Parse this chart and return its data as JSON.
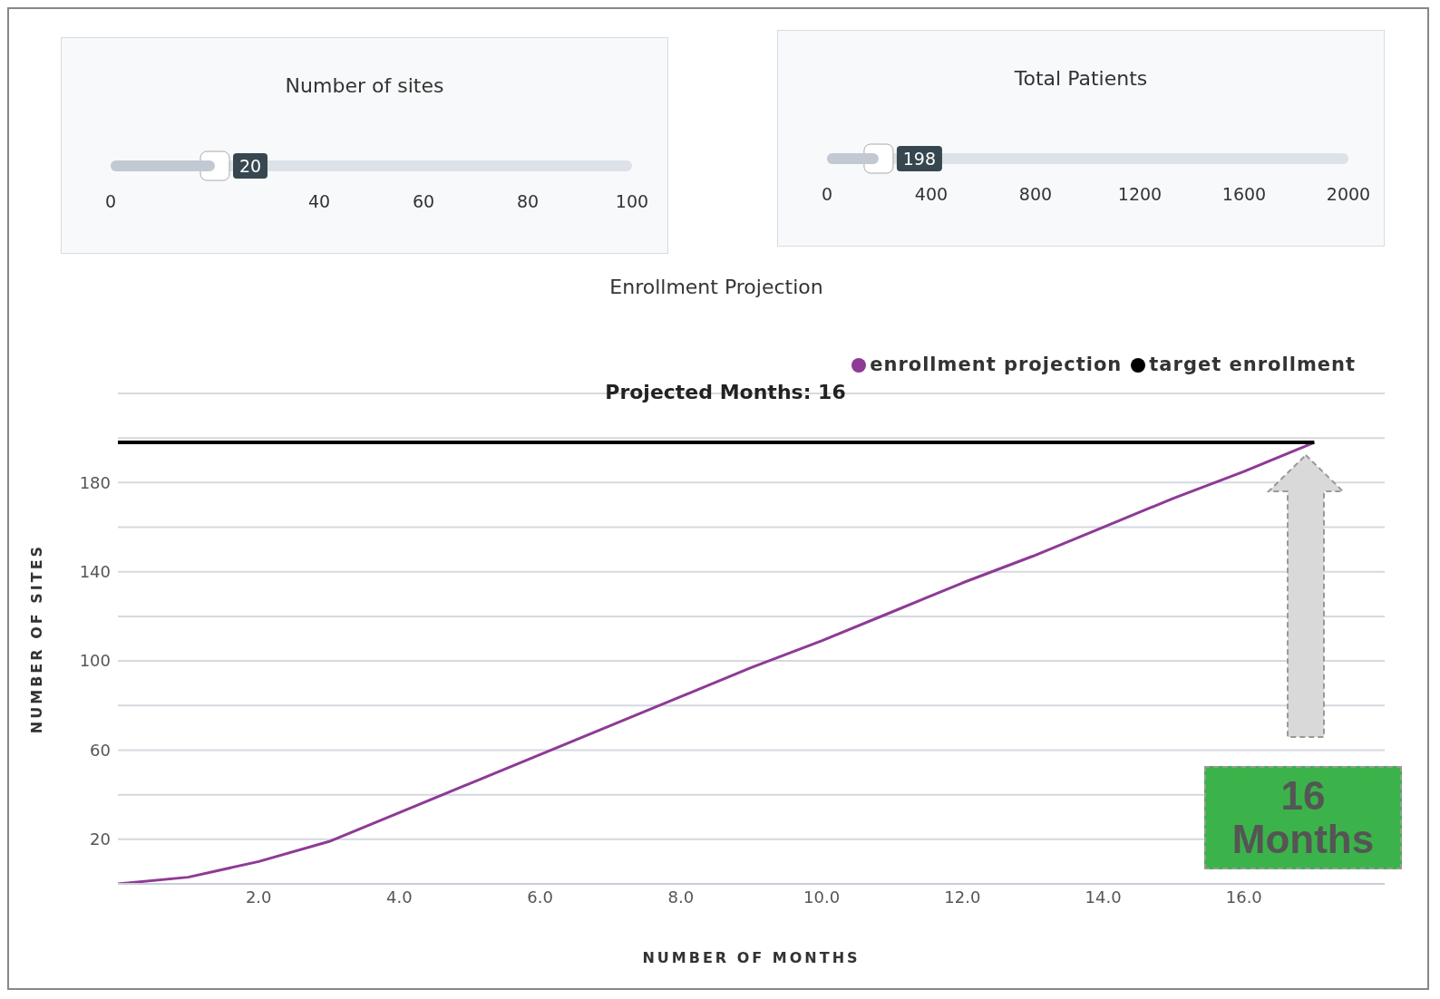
{
  "chart_data": [
    {
      "type": "bar",
      "orientation": "horizontal",
      "title": "Number of sites",
      "categories": [
        null
      ],
      "xlim": [
        0,
        100
      ],
      "xticks": [
        0,
        40,
        60,
        80,
        100
      ],
      "values": [
        20
      ],
      "color": "#c3c9d3",
      "data_labels": true
    },
    {
      "type": "bar",
      "orientation": "horizontal",
      "title": "Total Patients",
      "categories": [
        null
      ],
      "xlim": [
        0,
        2000
      ],
      "xticks": [
        0,
        400,
        800,
        1200,
        1600,
        2000
      ],
      "values": [
        198
      ],
      "color": "#c3c9d3",
      "data_labels": true
    },
    {
      "type": "line",
      "title": "Enrollment Projection",
      "xlabel": "NUMBER OF MONTHS",
      "ylabel": "NUMBER OF SITES",
      "xlim": [
        0,
        18
      ],
      "ylim": [
        0,
        220
      ],
      "xticks": [
        {
          "value": 2,
          "label": "2.0"
        },
        {
          "value": 4,
          "label": "4.0"
        },
        {
          "value": 6,
          "label": "6.0"
        },
        {
          "value": 8,
          "label": "8.0"
        },
        {
          "value": 10,
          "label": "10.0"
        },
        {
          "value": 12,
          "label": "12.0"
        },
        {
          "value": 14,
          "label": "14.0"
        },
        {
          "value": 16,
          "label": "16.0"
        }
      ],
      "yticks": [
        {
          "value": 0,
          "label": null
        },
        20,
        {
          "value": 40,
          "label": null
        },
        60,
        {
          "value": 80,
          "label": null
        },
        100,
        {
          "value": 120,
          "label": null
        },
        140,
        {
          "value": 160,
          "label": null
        },
        180,
        {
          "value": 200,
          "label": null
        },
        {
          "value": 220,
          "label": null
        }
      ],
      "grid": "y",
      "legend": "top right",
      "marker": "none",
      "line_style": "solid",
      "series": [
        {
          "name": "enrollment projection",
          "color": "#8e3a96",
          "x": [
            0,
            1,
            2,
            3,
            4,
            5,
            6,
            7,
            8,
            9,
            10,
            11,
            12,
            13,
            14,
            15,
            16,
            17
          ],
          "values": [
            0,
            3,
            10,
            19,
            32,
            45,
            58,
            71,
            84,
            97,
            109,
            122,
            135,
            147,
            160,
            173,
            185,
            198
          ]
        },
        {
          "name": "target enrollment",
          "color": "#000000",
          "x": [
            0,
            17
          ],
          "values": [
            198,
            198
          ]
        }
      ],
      "annotations": [
        "Projected Months: 16",
        "16 Months"
      ]
    }
  ]
}
